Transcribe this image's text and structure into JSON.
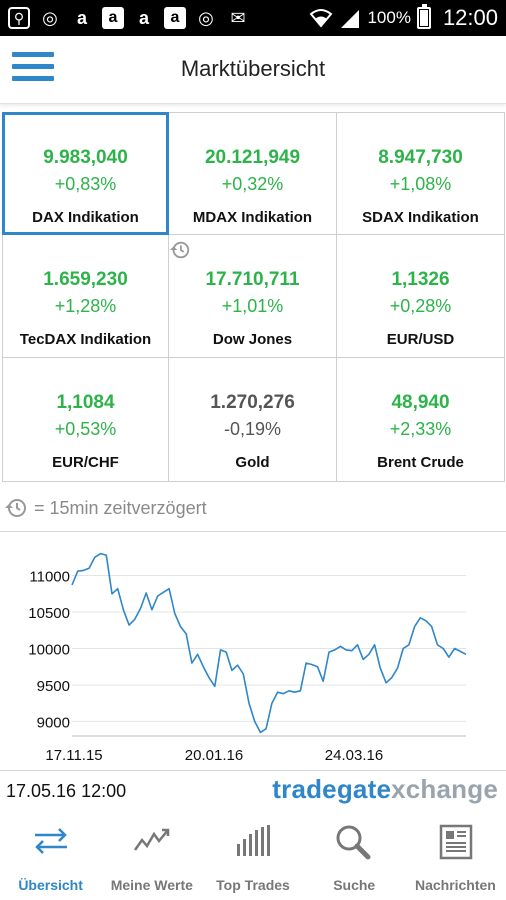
{
  "status_bar": {
    "notification_icons": [
      "circle-search-icon",
      "target-icon",
      "amazon-icon",
      "amazon-box-icon",
      "amazon-icon",
      "amazon-box-icon",
      "target-icon",
      "mail-off-icon"
    ],
    "battery": "100%",
    "time": "12:00"
  },
  "app": {
    "title": "Marktübersicht",
    "menu_icon": "hamburger-menu-icon"
  },
  "tiles": [
    {
      "value": "9.983,040",
      "change": "+0,83%",
      "name": "DAX Indikation",
      "trend": "pos",
      "selected": true,
      "delayed": false
    },
    {
      "value": "20.121,949",
      "change": "+0,32%",
      "name": "MDAX Indikation",
      "trend": "pos",
      "selected": false,
      "delayed": false
    },
    {
      "value": "8.947,730",
      "change": "+1,08%",
      "name": "SDAX Indikation",
      "trend": "pos",
      "selected": false,
      "delayed": false
    },
    {
      "value": "1.659,230",
      "change": "+1,28%",
      "name": "TecDAX Indikation",
      "trend": "pos",
      "selected": false,
      "delayed": false
    },
    {
      "value": "17.710,711",
      "change": "+1,01%",
      "name": "Dow Jones",
      "trend": "pos",
      "selected": false,
      "delayed": true
    },
    {
      "value": "1,1326",
      "change": "+0,28%",
      "name": "EUR/USD",
      "trend": "pos",
      "selected": false,
      "delayed": false
    },
    {
      "value": "1,1084",
      "change": "+0,53%",
      "name": "EUR/CHF",
      "trend": "pos",
      "selected": false,
      "delayed": false
    },
    {
      "value": "1.270,276",
      "change": "-0,19%",
      "name": "Gold",
      "trend": "neg",
      "selected": false,
      "delayed": false
    },
    {
      "value": "48,940",
      "change": "+2,33%",
      "name": "Brent Crude",
      "trend": "pos",
      "selected": false,
      "delayed": false
    }
  ],
  "delay_note": "= 15min zeitverzögert",
  "chart_data": {
    "type": "line",
    "x_tick_labels": [
      "17.11.15",
      "20.01.16",
      "24.03.16"
    ],
    "y_ticks": [
      9000,
      9500,
      10000,
      10500,
      11000
    ],
    "ylim": [
      8800,
      11350
    ],
    "line_color": "#2f86c8",
    "series": [
      {
        "values": [
          10870,
          11060,
          11070,
          11100,
          11250,
          11300,
          11280,
          10750,
          10820,
          10530,
          10320,
          10400,
          10550,
          10760,
          10530,
          10720,
          10770,
          10820,
          10480,
          10300,
          10200,
          9800,
          9920,
          9750,
          9600,
          9480,
          9980,
          9950,
          9700,
          9770,
          9650,
          9250,
          9000,
          8850,
          8900,
          9250,
          9400,
          9380,
          9420,
          9400,
          9420,
          9800,
          9780,
          9750,
          9550,
          9950,
          9980,
          10030,
          9980,
          9970,
          10050,
          9850,
          9920,
          10050,
          9730,
          9530,
          9600,
          9730,
          10000,
          10050,
          10300,
          10420,
          10380,
          10300,
          10050,
          10000,
          9880,
          10000,
          9960,
          9920
        ]
      }
    ]
  },
  "footer": {
    "datetime": "17.05.16 12:00",
    "logo_part1": "tradegate",
    "logo_part2": "xchange"
  },
  "nav": [
    {
      "label": "Übersicht",
      "icon": "arrows-exchange-icon",
      "active": true
    },
    {
      "label": "Meine Werte",
      "icon": "trend-line-icon",
      "active": false
    },
    {
      "label": "Top Trades",
      "icon": "bars-icon",
      "active": false
    },
    {
      "label": "Suche",
      "icon": "magnifier-icon",
      "active": false
    },
    {
      "label": "Nachrichten",
      "icon": "newspaper-icon",
      "active": false
    }
  ]
}
